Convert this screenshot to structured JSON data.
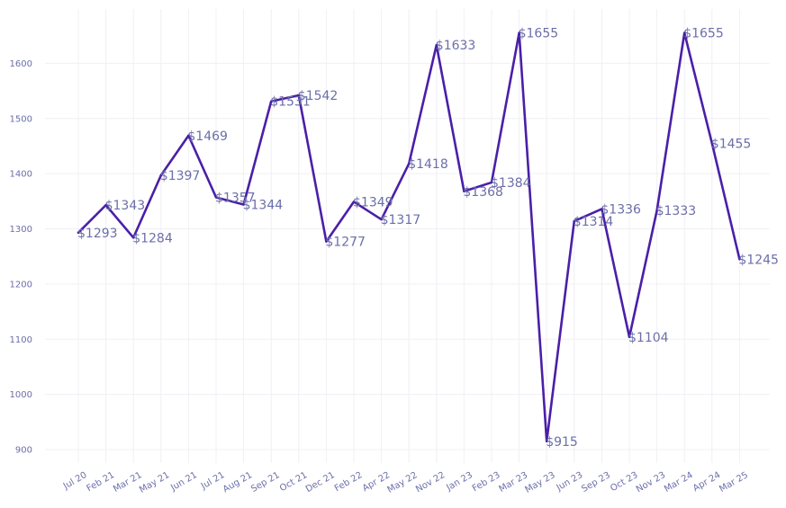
{
  "chart_data": {
    "type": "line",
    "title": "",
    "xlabel": "",
    "ylabel": "",
    "ylim": [
      875,
      1690
    ],
    "yticks": [
      900,
      1000,
      1100,
      1200,
      1300,
      1400,
      1500,
      1600
    ],
    "grid": true,
    "legend": "none",
    "line_color": "#4a1fa8",
    "label_color": "#6b6fa8",
    "categories": [
      "Jul 20",
      "Feb 21",
      "Mar 21",
      "May 21",
      "Jun 21",
      "Jul 21",
      "Aug 21",
      "Sep 21",
      "Oct 21",
      "Dec 21",
      "Feb 22",
      "Apr 22",
      "May 22",
      "Nov 22",
      "Jan 23",
      "Feb 23",
      "Mar 23",
      "May 23",
      "Jun 23",
      "Sep 23",
      "Oct 23",
      "Nov 23",
      "Mar 24",
      "Apr 24",
      "Mar 25"
    ],
    "series": [
      {
        "values": [
          1293,
          1343,
          1284,
          1397,
          1469,
          1357,
          1344,
          1531,
          1542,
          1277,
          1349,
          1317,
          1418,
          1633,
          1368,
          1384,
          1655,
          915,
          1314,
          1336,
          1104,
          1333,
          1655,
          1455,
          1245
        ],
        "labels": [
          "$1293",
          "$1343",
          "$1284",
          "$1397",
          "$1469",
          "$1357",
          "$1344",
          "$1531",
          "$1542",
          "$1277",
          "$1349",
          "$1317",
          "$1418",
          "$1633",
          "$1368",
          "$1384",
          "$1655",
          "$915",
          "$1314",
          "$1336",
          "$1104",
          "$1333",
          "$1655",
          "$1455",
          "$1245"
        ]
      }
    ]
  }
}
